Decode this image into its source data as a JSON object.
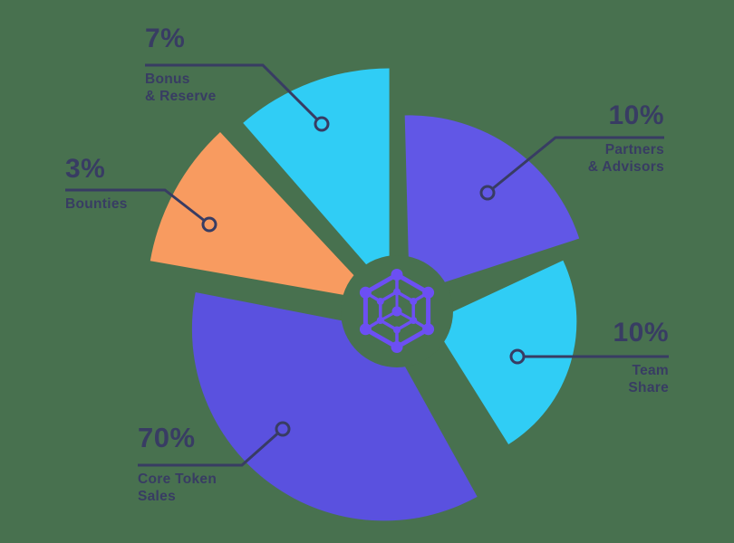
{
  "background_color": "#48714F",
  "text_color": "#383C63",
  "line_color": "#383C63",
  "chart_data": {
    "type": "pie",
    "unit": "%",
    "slices": [
      {
        "label": "Core Token Sales",
        "value": 70,
        "color": "#5A51DF"
      },
      {
        "label": "Team Share",
        "value": 10,
        "color": "#30CDF5"
      },
      {
        "label": "Partners & Advisors",
        "value": 10,
        "color": "#6157E6"
      },
      {
        "label": "Bonus & Reserve",
        "value": 7,
        "color": "#30CDF5"
      },
      {
        "label": "Bounties",
        "value": 3,
        "color": "#F89B60"
      }
    ],
    "legend_position": "callouts",
    "center_icon": "network-hexagon",
    "center_icon_color": "#6C4FF3",
    "donut_hole": true
  },
  "callouts": {
    "bonus": {
      "pct": "7%",
      "line1": "Bonus",
      "line2": "& Reserve"
    },
    "bounties": {
      "pct": "3%",
      "line1": "Bounties",
      "line2": ""
    },
    "partners": {
      "pct": "10%",
      "line1": "Partners",
      "line2": "& Advisors"
    },
    "team": {
      "pct": "10%",
      "line1": "Team",
      "line2": "Share"
    },
    "core": {
      "pct": "70%",
      "line1": "Core Token",
      "line2": "Sales"
    }
  }
}
